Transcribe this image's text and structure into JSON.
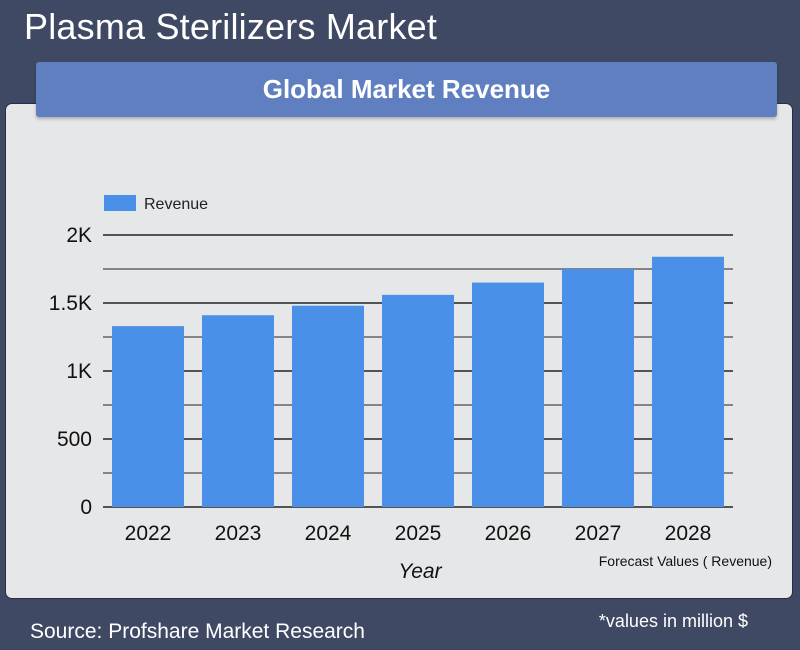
{
  "page": {
    "title": "Plasma Sterilizers Market",
    "source": "Source: Profshare Market Research",
    "units_note": "*values in million $"
  },
  "chart_data": {
    "type": "bar",
    "title": "Global Market Revenue",
    "xlabel": "Year",
    "ylabel": "",
    "forecast_note": "Forecast Values ( Revenue)",
    "categories": [
      "2022",
      "2023",
      "2024",
      "2025",
      "2026",
      "2027",
      "2028"
    ],
    "series": [
      {
        "name": "Revenue",
        "values": [
          1330,
          1410,
          1480,
          1560,
          1650,
          1750,
          1840
        ]
      }
    ],
    "ylim": [
      0,
      2000
    ],
    "yticks": [
      0,
      500,
      1000,
      1500,
      2000
    ],
    "ytick_labels": [
      "0",
      "500",
      "1K",
      "1.5K",
      "2K"
    ],
    "grid": true,
    "legend_position": "top-left",
    "colors": {
      "bar": "#4a90e8",
      "grid": "#222222"
    }
  }
}
